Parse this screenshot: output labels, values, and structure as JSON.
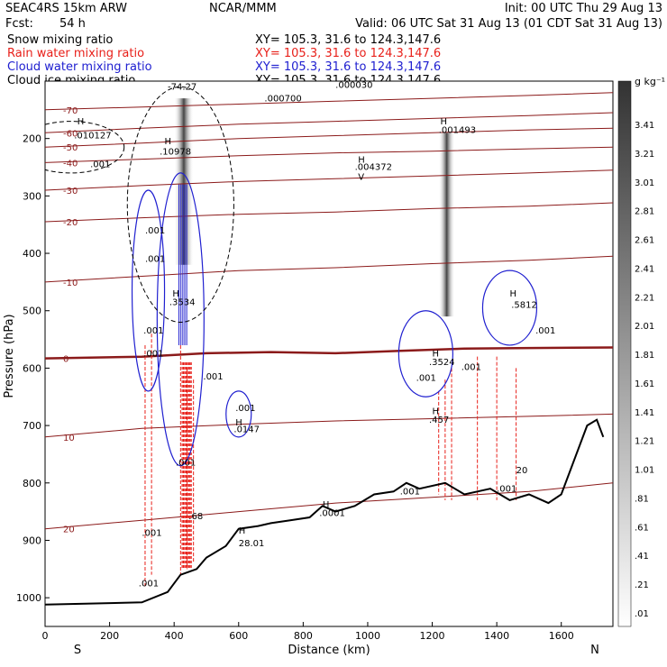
{
  "header": {
    "model": "SEAC4RS 15km ARW",
    "center": "NCAR/MMM",
    "init": "Init: 00 UTC Thu 29 Aug 13",
    "fcst_label": "Fcst:",
    "fcst_value": "54 h",
    "valid": "Valid: 06 UTC Sat 31 Aug 13 (01 CDT Sat 31 Aug 13)"
  },
  "legend": [
    {
      "name": "Snow mixing ratio",
      "xy": "XY= 105.3, 31.6 to 124.3,147.6",
      "color": "#000000"
    },
    {
      "name": "Rain water mixing ratio",
      "xy": "XY= 105.3, 31.6 to 124.3,147.6",
      "color": "#e8201a"
    },
    {
      "name": "Cloud water mixing ratio",
      "xy": "XY= 105.3, 31.6 to 124.3,147.6",
      "color": "#2020d0"
    },
    {
      "name": "Cloud ice mixing ratio",
      "xy": "XY= 105.3, 31.6 to 124.3,147.6",
      "color": "#000000"
    }
  ],
  "chart_data": {
    "type": "cross-section contour",
    "xlabel": "Distance (km)",
    "ylabel": "Pressure (hPa)",
    "xlim": [
      0,
      1760
    ],
    "ylim": [
      1050,
      100
    ],
    "x_ticks": [
      "0",
      "200",
      "400",
      "600",
      "800",
      "1000",
      "1200",
      "1400",
      "1600"
    ],
    "x_tick_values": [
      0,
      200,
      400,
      600,
      800,
      1000,
      1200,
      1400,
      1600
    ],
    "y_ticks": [
      "200",
      "300",
      "400",
      "500",
      "600",
      "700",
      "800",
      "900",
      "1000"
    ],
    "y_tick_values": [
      200,
      300,
      400,
      500,
      600,
      700,
      800,
      900,
      1000
    ],
    "direction_left": "S",
    "direction_right": "N",
    "colorbar": {
      "unit": "g kg⁻¹",
      "labels": [
        "3.41",
        "3.21",
        "3.01",
        "2.81",
        "2.61",
        "2.41",
        "2.21",
        "2.01",
        "1.81",
        "1.61",
        "1.41",
        "1.21",
        "1.01",
        ".81",
        ".61",
        ".41",
        ".21",
        ".01"
      ]
    },
    "temperature_isotherms": [
      {
        "label": "-70",
        "points": [
          [
            0,
            150
          ],
          [
            300,
            145
          ],
          [
            600,
            140
          ],
          [
            900,
            135
          ],
          [
            1200,
            130
          ],
          [
            1500,
            125
          ],
          [
            1760,
            120
          ]
        ]
      },
      {
        "label": "-60",
        "points": [
          [
            0,
            190
          ],
          [
            300,
            182
          ],
          [
            600,
            175
          ],
          [
            900,
            170
          ],
          [
            1200,
            165
          ],
          [
            1500,
            160
          ],
          [
            1760,
            155
          ]
        ]
      },
      {
        "label": "-50",
        "points": [
          [
            0,
            215
          ],
          [
            300,
            208
          ],
          [
            600,
            200
          ],
          [
            900,
            195
          ],
          [
            1200,
            190
          ],
          [
            1500,
            185
          ],
          [
            1760,
            182
          ]
        ]
      },
      {
        "label": "-40",
        "points": [
          [
            0,
            242
          ],
          [
            300,
            236
          ],
          [
            600,
            230
          ],
          [
            900,
            225
          ],
          [
            1200,
            222
          ],
          [
            1500,
            218
          ],
          [
            1760,
            215
          ]
        ]
      },
      {
        "label": "-30",
        "points": [
          [
            0,
            290
          ],
          [
            300,
            282
          ],
          [
            600,
            275
          ],
          [
            900,
            270
          ],
          [
            1200,
            265
          ],
          [
            1500,
            260
          ],
          [
            1760,
            255
          ]
        ]
      },
      {
        "label": "-20",
        "points": [
          [
            0,
            345
          ],
          [
            300,
            338
          ],
          [
            600,
            332
          ],
          [
            900,
            328
          ],
          [
            1200,
            322
          ],
          [
            1500,
            318
          ],
          [
            1760,
            312
          ]
        ]
      },
      {
        "label": "-10",
        "points": [
          [
            0,
            450
          ],
          [
            300,
            440
          ],
          [
            600,
            430
          ],
          [
            900,
            425
          ],
          [
            1200,
            418
          ],
          [
            1500,
            412
          ],
          [
            1760,
            405
          ]
        ]
      },
      {
        "label": "0",
        "points": [
          [
            0,
            583
          ],
          [
            300,
            580
          ],
          [
            500,
            574
          ],
          [
            700,
            572
          ],
          [
            900,
            574
          ],
          [
            1100,
            570
          ],
          [
            1300,
            566
          ],
          [
            1500,
            565
          ],
          [
            1760,
            564
          ]
        ]
      },
      {
        "label": "10",
        "points": [
          [
            0,
            720
          ],
          [
            300,
            705
          ],
          [
            600,
            698
          ],
          [
            900,
            692
          ],
          [
            1200,
            688
          ],
          [
            1500,
            684
          ],
          [
            1760,
            680
          ]
        ]
      },
      {
        "label": "20",
        "points": [
          [
            0,
            880
          ],
          [
            300,
            865
          ],
          [
            600,
            850
          ],
          [
            900,
            835
          ],
          [
            1200,
            825
          ],
          [
            1500,
            815
          ],
          [
            1760,
            800
          ]
        ]
      }
    ],
    "terrain": [
      [
        0,
        1012
      ],
      [
        300,
        1008
      ],
      [
        380,
        990
      ],
      [
        420,
        960
      ],
      [
        470,
        950
      ],
      [
        500,
        930
      ],
      [
        560,
        910
      ],
      [
        600,
        880
      ],
      [
        660,
        875
      ],
      [
        700,
        870
      ],
      [
        760,
        865
      ],
      [
        820,
        860
      ],
      [
        860,
        840
      ],
      [
        900,
        850
      ],
      [
        960,
        840
      ],
      [
        1020,
        820
      ],
      [
        1080,
        815
      ],
      [
        1120,
        800
      ],
      [
        1160,
        810
      ],
      [
        1240,
        800
      ],
      [
        1300,
        820
      ],
      [
        1380,
        810
      ],
      [
        1440,
        830
      ],
      [
        1500,
        820
      ],
      [
        1560,
        835
      ],
      [
        1600,
        820
      ],
      [
        1680,
        700
      ],
      [
        1710,
        690
      ],
      [
        1730,
        720
      ]
    ],
    "labels": [
      {
        "text": "H",
        "x": 100,
        "y": 175
      },
      {
        "text": ".010127",
        "x": 90,
        "y": 200
      },
      {
        "text": ".001",
        "x": 140,
        "y": 250
      },
      {
        "text": "-74.27",
        "x": 380,
        "y": 115
      },
      {
        "text": "H",
        "x": 370,
        "y": 210
      },
      {
        "text": ".10978",
        "x": 355,
        "y": 228
      },
      {
        "text": ".000700",
        "x": 680,
        "y": 135
      },
      {
        "text": ".000030",
        "x": 900,
        "y": 112
      },
      {
        "text": "H",
        "x": 1225,
        "y": 175
      },
      {
        "text": ".001493",
        "x": 1220,
        "y": 190
      },
      {
        "text": "H",
        "x": 970,
        "y": 242
      },
      {
        "text": ".004372",
        "x": 960,
        "y": 255
      },
      {
        "text": "V",
        "x": 970,
        "y": 272
      },
      {
        "text": ".001",
        "x": 310,
        "y": 365
      },
      {
        "text": ".001",
        "x": 310,
        "y": 415
      },
      {
        "text": "H",
        "x": 395,
        "y": 475
      },
      {
        "text": ".3534",
        "x": 385,
        "y": 490
      },
      {
        "text": ".001",
        "x": 305,
        "y": 540
      },
      {
        "text": ".001",
        "x": 305,
        "y": 580
      },
      {
        "text": ".001",
        "x": 490,
        "y": 620
      },
      {
        "text": ".001",
        "x": 590,
        "y": 675
      },
      {
        "text": "H",
        "x": 590,
        "y": 700
      },
      {
        "text": ".0147",
        "x": 585,
        "y": 712
      },
      {
        "text": "H",
        "x": 1200,
        "y": 580
      },
      {
        "text": ".3524",
        "x": 1190,
        "y": 595
      },
      {
        "text": ".001",
        "x": 1290,
        "y": 603
      },
      {
        "text": ".001",
        "x": 1150,
        "y": 622
      },
      {
        "text": "H",
        "x": 1200,
        "y": 680
      },
      {
        "text": ".457",
        "x": 1190,
        "y": 695
      },
      {
        "text": "H",
        "x": 1440,
        "y": 475
      },
      {
        "text": ".5812",
        "x": 1445,
        "y": 495
      },
      {
        "text": ".001",
        "x": 1520,
        "y": 540
      },
      {
        "text": ".001",
        "x": 1100,
        "y": 820
      },
      {
        "text": ".001",
        "x": 1400,
        "y": 815
      },
      {
        "text": "20",
        "x": 1460,
        "y": 783
      },
      {
        "text": ".001",
        "x": 405,
        "y": 770
      },
      {
        "text": ".68",
        "x": 445,
        "y": 863
      },
      {
        "text": ".001",
        "x": 300,
        "y": 892
      },
      {
        "text": "H",
        "x": 860,
        "y": 843
      },
      {
        "text": ".0001",
        "x": 850,
        "y": 858
      },
      {
        "text": "H",
        "x": 600,
        "y": 888
      },
      {
        "text": "28.01",
        "x": 600,
        "y": 910
      },
      {
        "text": ".001",
        "x": 290,
        "y": 980
      }
    ],
    "ice_shading": [
      {
        "x": 430,
        "p_top": 130,
        "p_bottom": 420,
        "width": 60
      },
      {
        "x": 1245,
        "p_top": 190,
        "p_bottom": 510,
        "width": 50
      }
    ]
  }
}
